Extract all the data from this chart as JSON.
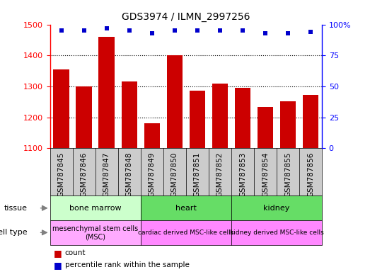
{
  "title": "GDS3974 / ILMN_2997256",
  "samples": [
    "GSM787845",
    "GSM787846",
    "GSM787847",
    "GSM787848",
    "GSM787849",
    "GSM787850",
    "GSM787851",
    "GSM787852",
    "GSM787853",
    "GSM787854",
    "GSM787855",
    "GSM787856"
  ],
  "counts": [
    1355,
    1300,
    1460,
    1315,
    1180,
    1400,
    1285,
    1310,
    1295,
    1233,
    1252,
    1272
  ],
  "percentile_ranks": [
    95,
    95,
    97,
    95,
    93,
    95,
    95,
    95,
    95,
    93,
    93,
    94
  ],
  "ylim_left": [
    1100,
    1500
  ],
  "ylim_right": [
    0,
    100
  ],
  "yticks_left": [
    1100,
    1200,
    1300,
    1400,
    1500
  ],
  "yticks_right": [
    0,
    25,
    50,
    75,
    100
  ],
  "bar_color": "#cc0000",
  "dot_color": "#0000cc",
  "tissue_groups": [
    {
      "label": "bone marrow",
      "start": 0,
      "end": 3,
      "color": "#ccffcc"
    },
    {
      "label": "heart",
      "start": 4,
      "end": 7,
      "color": "#66dd66"
    },
    {
      "label": "kidney",
      "start": 8,
      "end": 11,
      "color": "#66dd66"
    }
  ],
  "cell_type_groups": [
    {
      "label": "mesenchymal stem cells\n(MSC)",
      "start": 0,
      "end": 3,
      "color": "#ffaaff"
    },
    {
      "label": "cardiac derived MSC-like cells",
      "start": 4,
      "end": 7,
      "color": "#ff88ff"
    },
    {
      "label": "kidney derived MSC-like cells",
      "start": 8,
      "end": 11,
      "color": "#ff88ff"
    }
  ],
  "tissue_label": "tissue",
  "cell_type_label": "cell type",
  "legend_count_label": "count",
  "legend_percentile_label": "percentile rank within the sample",
  "background_color": "#ffffff",
  "bar_width": 0.7,
  "xlabel_bg": "#cccccc",
  "grid_linestyle": ":",
  "grid_linewidth": 0.8
}
